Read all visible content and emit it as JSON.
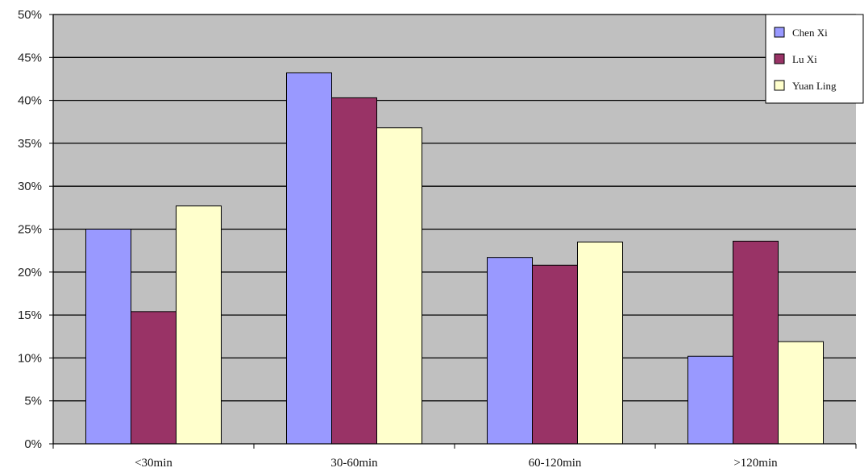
{
  "chart_data": {
    "type": "bar",
    "categories": [
      "<30min",
      "30-60min",
      "60-120min",
      ">120min"
    ],
    "series": [
      {
        "name": "Chen Xi",
        "values": [
          25.0,
          43.2,
          21.7,
          10.2
        ],
        "color": "#9999ff"
      },
      {
        "name": "Lu Xi",
        "values": [
          15.4,
          40.3,
          20.8,
          23.6
        ],
        "color": "#993366"
      },
      {
        "name": "Yuan Ling",
        "values": [
          27.7,
          36.8,
          23.5,
          11.9
        ],
        "color": "#ffffcc"
      }
    ],
    "ylim": [
      0,
      50
    ],
    "yticks": [
      "0%",
      "5%",
      "10%",
      "15%",
      "20%",
      "25%",
      "30%",
      "35%",
      "40%",
      "45%",
      "50%"
    ],
    "ytick_values": [
      0,
      5,
      10,
      15,
      20,
      25,
      30,
      35,
      40,
      45,
      50
    ],
    "grid": true,
    "legend": "top-right",
    "plot_background": "#c0c0c0",
    "title": "",
    "xlabel": "",
    "ylabel": ""
  }
}
